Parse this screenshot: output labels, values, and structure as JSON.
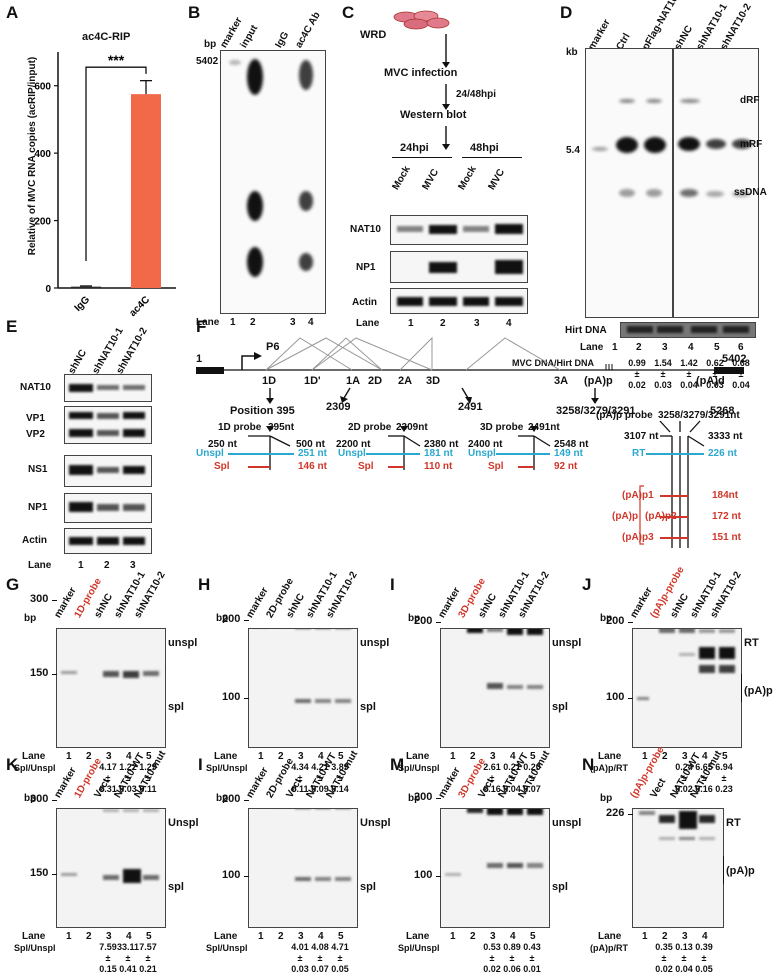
{
  "panels": [
    "A",
    "B",
    "C",
    "D",
    "E",
    "F",
    "G",
    "H",
    "I",
    "J",
    "K",
    "I",
    "M",
    "N"
  ],
  "panel_a": {
    "chart_data": {
      "type": "bar",
      "title": "ac4C-RIP",
      "categories": [
        "IgG",
        "ac4C"
      ],
      "values": [
        4,
        575
      ],
      "errors": [
        2,
        40
      ],
      "ylabel": "Relative of MVC RNA copies (acRIP/input)",
      "yticks": [
        "0",
        "200",
        "400",
        "600"
      ],
      "ylim": [
        0,
        700
      ],
      "significance": "***",
      "colors": [
        "#2a2a2a",
        "#f2694a"
      ]
    }
  },
  "panel_b": {
    "bp_label": "bp",
    "marker_bp": "5402",
    "lanes_header": [
      "marker",
      "input",
      "IgG",
      "ac4C Ab"
    ],
    "lane_word": "Lane",
    "lane_numbers": [
      "1",
      "2",
      "3",
      "4"
    ]
  },
  "panel_c": {
    "steps": [
      "WRD",
      "MVC infection",
      "24/48hpi",
      "Western blot"
    ],
    "timepoints": [
      "24hpi",
      "48hpi"
    ],
    "lanes_header": [
      "Mock",
      "MVC",
      "Mock",
      "MVC"
    ],
    "rows": [
      "NAT10",
      "NP1",
      "Actin"
    ],
    "lane_word": "Lane",
    "lane_numbers": [
      "1",
      "2",
      "3",
      "4"
    ]
  },
  "panel_d": {
    "lanes_header": [
      "marker",
      "Ctrl",
      "pFlag-NAT10",
      "shNC",
      "shNAT10-1",
      "shNAT10-2"
    ],
    "kb_label": "kb",
    "marker_kb": "5.4",
    "band_labels": [
      "dRF",
      "mRF",
      "ssDNA"
    ],
    "hirt_label": "Hirt DNA",
    "lane_word": "Lane",
    "lane_numbers": [
      "1",
      "2",
      "3",
      "4",
      "5",
      "6"
    ],
    "ratio_label": "MVC DNA/Hirt DNA",
    "quant": [
      {
        "mean": "0.99",
        "sd": "0.02"
      },
      {
        "mean": "1.54",
        "sd": "0.03"
      },
      {
        "mean": "1.42",
        "sd": "0.04"
      },
      {
        "mean": "0.62",
        "sd": "0.03"
      },
      {
        "mean": "0.68",
        "sd": "0.04"
      }
    ],
    "pm": "±"
  },
  "panel_e": {
    "lanes_header": [
      "shNC",
      "shNAT10-1",
      "shNAT10-2"
    ],
    "rows": [
      "NAT10",
      "VP1",
      "VP2",
      "NS1",
      "NP1",
      "Actin"
    ],
    "lane_word": "Lane",
    "lane_numbers": [
      "1",
      "2",
      "3"
    ]
  },
  "panel_f": {
    "left_end": "1",
    "right_end": "5402",
    "promoter": "P6",
    "sites": [
      "1D",
      "1D'",
      "1A",
      "2D",
      "2A",
      "3D",
      "3A",
      "(pA)p",
      "(pA)d"
    ],
    "position_label": "Position 395",
    "positions": [
      "2309",
      "2491",
      "3258/3279/3291",
      "5268"
    ],
    "probes": [
      {
        "title": "1D probe",
        "site": "395nt",
        "left": "250 nt",
        "right": "500 nt",
        "unspl_label": "Unspl",
        "unspl": "251 nt",
        "spl_label": "Spl",
        "spl": "146 nt"
      },
      {
        "title": "2D probe",
        "site": "2309nt",
        "left": "2200 nt",
        "right": "2380 nt",
        "unspl_label": "Unspl",
        "unspl": "181 nt",
        "spl_label": "Spl",
        "spl": "110 nt"
      },
      {
        "title": "3D probe",
        "site": "2491nt",
        "left": "2400 nt",
        "right": "2548 nt",
        "unspl_label": "Unspl",
        "unspl": "149 nt",
        "spl_label": "Spl",
        "spl": "92 nt"
      }
    ],
    "pa_probe": {
      "title": "(pA)p probe",
      "site": "3258/3279/3291nt",
      "left": "3107 nt",
      "right": "3333 nt",
      "rt_label": "RT",
      "rt": "226 nt",
      "group": "(pA)p",
      "items": [
        {
          "label": "(pA)p1",
          "nt": "184nt"
        },
        {
          "label": "(pA)p2",
          "nt": "172 nt"
        },
        {
          "label": "(pA)p3",
          "nt": "151 nt"
        }
      ]
    }
  },
  "panel_g": {
    "bp": "bp",
    "markers": [
      "300",
      "150"
    ],
    "lanes_header": [
      "marker",
      "1D-probe",
      "shNC",
      "shNAT10-1",
      "shNAT10-2"
    ],
    "right": [
      "unspl",
      "spl"
    ],
    "lane_word": "Lane",
    "lane_numbers": [
      "1",
      "2",
      "3",
      "4",
      "5"
    ],
    "ratio": "Spl/Unspl",
    "quant": [
      {
        "mean": "4.17",
        "sd": "0.31"
      },
      {
        "mean": "1.22",
        "sd": "0.03"
      },
      {
        "mean": "1.29",
        "sd": "0.11"
      }
    ]
  },
  "panel_h": {
    "bp": "bp",
    "markers": [
      "200",
      "100"
    ],
    "lanes_header": [
      "marker",
      "2D-probe",
      "shNC",
      "shNAT10-1",
      "shNAT10-2"
    ],
    "right": [
      "unspl",
      "spl"
    ],
    "lane_word": "Lane",
    "lane_numbers": [
      "1",
      "2",
      "3",
      "4",
      "5"
    ],
    "ratio": "Spl/Unspl",
    "quant": [
      {
        "mean": "4.34",
        "sd": "0.11"
      },
      {
        "mean": "4.21",
        "sd": "0.09"
      },
      {
        "mean": "3.89",
        "sd": "0.14"
      }
    ]
  },
  "panel_i": {
    "bp": "bp",
    "markers": [
      "200"
    ],
    "lanes_header": [
      "marker",
      "3D-probe",
      "shNC",
      "shNAT10-1",
      "shNAT10-2"
    ],
    "right": [
      "unspl",
      "spl"
    ],
    "lane_word": "Lane",
    "lane_numbers": [
      "1",
      "2",
      "3",
      "4",
      "5"
    ],
    "ratio": "Spl/Unspl",
    "quant": [
      {
        "mean": "2.61",
        "sd": "0.16"
      },
      {
        "mean": "0.21",
        "sd": "0.04"
      },
      {
        "mean": "0.20",
        "sd": "0.07"
      }
    ]
  },
  "panel_j": {
    "bp": "bp",
    "markers": [
      "200",
      "100"
    ],
    "lanes_header": [
      "marker",
      "(pA)p-probe",
      "shNC",
      "shNAT10-1",
      "shNAT10-2"
    ],
    "right": [
      "RT",
      "(pA)p"
    ],
    "lane_word": "Lane",
    "lane_numbers": [
      "1",
      "2",
      "3",
      "4",
      "5"
    ],
    "ratio": "(pA)p/RT",
    "quant": [
      {
        "mean": "0.24",
        "sd": "0.02"
      },
      {
        "mean": "6.65",
        "sd": "0.16"
      },
      {
        "mean": "6.94",
        "sd": "0.23"
      }
    ]
  },
  "panel_k": {
    "bp": "bp",
    "markers": [
      "300",
      "150"
    ],
    "lanes_header": [
      "marker",
      "1D-probe",
      "Vect",
      "NAT10-WT",
      "NAT10-mut"
    ],
    "right": [
      "Unspl",
      "spl"
    ],
    "lane_word": "Lane",
    "lane_numbers": [
      "1",
      "2",
      "3",
      "4",
      "5"
    ],
    "ratio": "Spl/Unspl",
    "quant": [
      {
        "mean": "7.59",
        "sd": "0.15"
      },
      {
        "mean": "33.11",
        "sd": "0.41"
      },
      {
        "mean": "7.57",
        "sd": "0.21"
      }
    ]
  },
  "panel_l": {
    "bp": "bp",
    "markers": [
      "200",
      "100"
    ],
    "lanes_header": [
      "marker",
      "2D-probe",
      "Vect",
      "NAT10-WT",
      "NAT10-mut"
    ],
    "right": [
      "Unspl",
      "spl"
    ],
    "lane_word": "Lane",
    "lane_numbers": [
      "1",
      "2",
      "3",
      "4",
      "5"
    ],
    "ratio": "Spl/Unspl",
    "quant": [
      {
        "mean": "4.01",
        "sd": "0.03"
      },
      {
        "mean": "4.08",
        "sd": "0.07"
      },
      {
        "mean": "4.71",
        "sd": "0.05"
      }
    ]
  },
  "panel_m": {
    "bp": "bp",
    "markers": [
      "200",
      "100"
    ],
    "lanes_header": [
      "marker",
      "3D-probe",
      "Vect",
      "NAT10-WT",
      "NAT10-mut"
    ],
    "right": [
      "unspl",
      "spl"
    ],
    "lane_word": "Lane",
    "lane_numbers": [
      "1",
      "2",
      "3",
      "4",
      "5"
    ],
    "ratio": "Spl/Unspl",
    "quant": [
      {
        "mean": "0.53",
        "sd": "0.02"
      },
      {
        "mean": "0.89",
        "sd": "0.06"
      },
      {
        "mean": "0.43",
        "sd": "0.01"
      }
    ]
  },
  "panel_n": {
    "bp": "bp",
    "markers": [
      "226"
    ],
    "lanes_header": [
      "(pA)p-probe",
      "Vect",
      "NAT10-WT",
      "NAT10-mut"
    ],
    "right": [
      "RT",
      "(pA)p"
    ],
    "lane_word": "Lane",
    "lane_numbers": [
      "1",
      "2",
      "3",
      "4"
    ],
    "ratio": "(pA)p/RT",
    "quant": [
      {
        "mean": "0.35",
        "sd": "0.02"
      },
      {
        "mean": "0.13",
        "sd": "0.04"
      },
      {
        "mean": "0.39",
        "sd": "0.05"
      }
    ]
  }
}
